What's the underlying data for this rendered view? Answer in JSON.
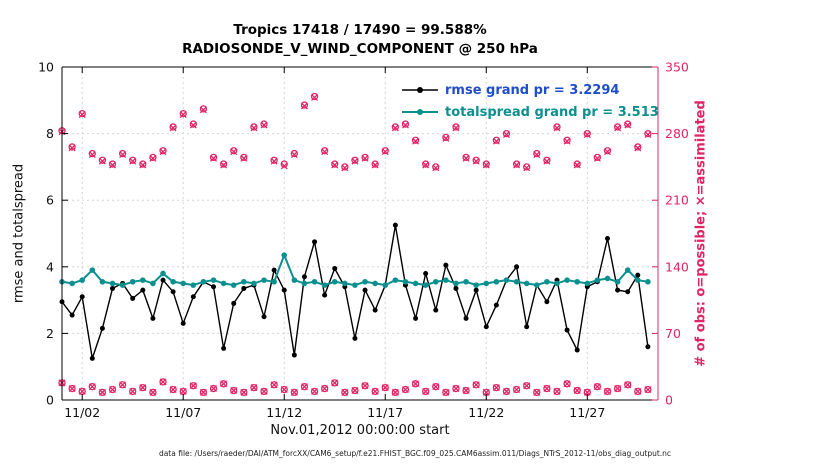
{
  "header": {
    "title_line1": "Tropics 17418 / 17490 = 99.588%",
    "title_line2": "RADIOSONDE_V_WIND_COMPONENT @ 250 hPa"
  },
  "axes": {
    "left_label": "rmse and totalspread",
    "right_label": "# of obs: o=possible; ×=assimilated",
    "x_label": "Nov.01,2012 00:00:00 start"
  },
  "legend": {
    "entries": [
      {
        "label": "rmse grand pr = 3.2294",
        "color": "#000000",
        "text_color": "#1f4ec8"
      },
      {
        "label": "totalspread grand pr = 3.513",
        "color": "#0c8f8f",
        "text_color": "#0c8f8f"
      }
    ]
  },
  "footer": {
    "datafile": "data file: /Users/raeder/DAI/ATM_forcXX/CAM6_setup/f.e21.FHIST_BGC.f09_025.CAM6assim.011/Diags_NTrS_2012-11/obs_diag_output.nc"
  },
  "colors": {
    "obs": "#e02465",
    "grid": "#d4d4d4",
    "axis": "#000000"
  },
  "chart_data": {
    "type": "line",
    "title": "Tropics 17418 / 17490 = 99.588% — RADIOSONDE_V_WIND_COMPONENT @ 250 hPa",
    "xlabel": "Nov.01,2012 00:00:00 start",
    "x_tick_labels": [
      "11/02",
      "11/07",
      "11/12",
      "11/17",
      "11/22",
      "11/27"
    ],
    "x_tick_days": [
      2,
      7,
      12,
      17,
      22,
      27
    ],
    "x_range_days": [
      1,
      30.5
    ],
    "left_axis": {
      "label": "rmse and totalspread",
      "range": [
        0,
        10
      ],
      "ticks": [
        0,
        2,
        4,
        6,
        8,
        10
      ]
    },
    "right_axis": {
      "label": "# of obs: o=possible; ×=assimilated",
      "range": [
        0,
        350
      ],
      "ticks": [
        0,
        70,
        140,
        210,
        280,
        350
      ]
    },
    "grid": true,
    "legend_position": "top-right-inside",
    "x_days": [
      1,
      1.5,
      2,
      2.5,
      3,
      3.5,
      4,
      4.5,
      5,
      5.5,
      6,
      6.5,
      7,
      7.5,
      8,
      8.5,
      9,
      9.5,
      10,
      10.5,
      11,
      11.5,
      12,
      12.5,
      13,
      13.5,
      14,
      14.5,
      15,
      15.5,
      16,
      16.5,
      17,
      17.5,
      18,
      18.5,
      19,
      19.5,
      20,
      20.5,
      21,
      21.5,
      22,
      22.5,
      23,
      23.5,
      24,
      24.5,
      25,
      25.5,
      26,
      26.5,
      27,
      27.5,
      28,
      28.5,
      29,
      29.5,
      30
    ],
    "series": [
      {
        "name": "rmse",
        "grand_pr": 3.2294,
        "axis": "left",
        "color": "#000000",
        "width": 1.4,
        "msize": 2.5,
        "values": [
          2.95,
          2.55,
          3.1,
          1.25,
          2.15,
          3.35,
          3.5,
          3.05,
          3.3,
          2.45,
          3.6,
          3.25,
          2.3,
          3.1,
          3.55,
          3.4,
          1.55,
          2.9,
          3.35,
          3.45,
          2.5,
          3.9,
          3.3,
          1.35,
          3.7,
          4.75,
          3.15,
          3.95,
          3.4,
          1.85,
          3.3,
          2.7,
          3.45,
          5.25,
          3.45,
          2.45,
          3.8,
          2.7,
          4.05,
          3.35,
          2.45,
          3.3,
          2.2,
          2.85,
          3.6,
          4.0,
          2.2,
          3.45,
          2.95,
          3.6,
          2.1,
          1.5,
          3.4,
          3.55,
          4.85,
          3.3,
          3.25,
          3.75,
          1.6
        ]
      },
      {
        "name": "totalspread",
        "grand_pr": 3.513,
        "axis": "left",
        "color": "#0c8f8f",
        "width": 2.0,
        "msize": 2.8,
        "values": [
          3.55,
          3.5,
          3.6,
          3.9,
          3.55,
          3.5,
          3.45,
          3.55,
          3.6,
          3.5,
          3.8,
          3.55,
          3.5,
          3.45,
          3.55,
          3.6,
          3.5,
          3.45,
          3.55,
          3.5,
          3.6,
          3.55,
          4.35,
          3.6,
          3.5,
          3.55,
          3.45,
          3.55,
          3.5,
          3.45,
          3.55,
          3.5,
          3.45,
          3.6,
          3.55,
          3.5,
          3.45,
          3.55,
          3.6,
          3.5,
          3.55,
          3.45,
          3.5,
          3.55,
          3.6,
          3.55,
          3.5,
          3.45,
          3.55,
          3.5,
          3.6,
          3.55,
          3.5,
          3.6,
          3.65,
          3.55,
          3.9,
          3.6,
          3.55
        ]
      },
      {
        "name": "obs-possible",
        "axis": "right",
        "color": "#e02465",
        "marker": "o",
        "values": [
          283,
          266,
          301,
          259,
          252,
          248,
          259,
          252,
          248,
          255,
          262,
          287,
          301,
          290,
          306,
          255,
          248,
          262,
          255,
          287,
          290,
          252,
          248,
          259,
          310,
          319,
          262,
          248,
          245,
          252,
          255,
          248,
          262,
          287,
          290,
          273,
          248,
          245,
          276,
          287,
          255,
          252,
          248,
          273,
          280,
          248,
          245,
          259,
          252,
          287,
          273,
          248,
          280,
          255,
          262,
          287,
          290,
          266,
          280
        ]
      },
      {
        "name": "obs-assimilated",
        "axis": "right",
        "color": "#e02465",
        "marker": "x",
        "values": [
          282,
          265,
          300,
          258,
          251,
          247,
          258,
          251,
          247,
          254,
          261,
          286,
          300,
          289,
          305,
          254,
          247,
          261,
          254,
          286,
          289,
          251,
          246,
          258,
          309,
          318,
          261,
          247,
          244,
          251,
          254,
          247,
          261,
          286,
          289,
          272,
          247,
          244,
          275,
          286,
          254,
          251,
          247,
          272,
          279,
          247,
          244,
          258,
          251,
          286,
          272,
          247,
          279,
          254,
          261,
          286,
          289,
          265,
          279
        ]
      },
      {
        "name": "obs-count-markers-bottom",
        "axis": "right",
        "color": "#e02465",
        "marker": "ox",
        "values": [
          18,
          12,
          9,
          14,
          8,
          11,
          16,
          9,
          13,
          8,
          19,
          11,
          9,
          15,
          8,
          12,
          17,
          10,
          8,
          13,
          9,
          16,
          11,
          8,
          14,
          9,
          12,
          18,
          8,
          10,
          15,
          9,
          13,
          8,
          11,
          17,
          9,
          14,
          8,
          12,
          10,
          16,
          8,
          13,
          9,
          11,
          15,
          8,
          12,
          9,
          17,
          10,
          8,
          14,
          9,
          12,
          16,
          9,
          11
        ]
      }
    ]
  }
}
